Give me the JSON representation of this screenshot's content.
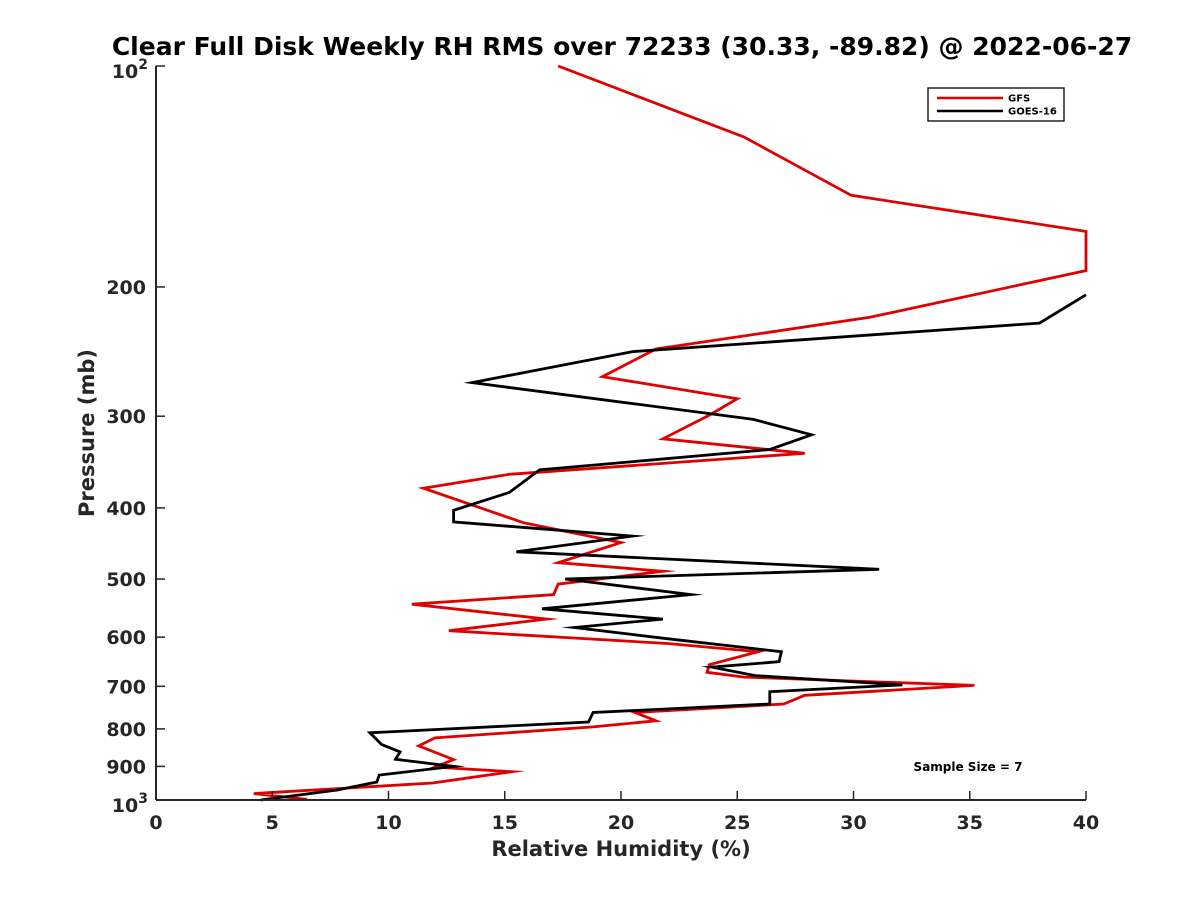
{
  "chart_data": {
    "type": "line",
    "title": "Clear Full Disk Weekly RH RMS over 72233 (30.33, -89.82) @ 2022-06-27",
    "xlabel": "Relative Humidity (%)",
    "ylabel": "Pressure (mb)",
    "xlim": [
      0,
      40
    ],
    "ylim": [
      100,
      1000
    ],
    "y_scale": "log",
    "y_reversed": true,
    "grid": false,
    "legend_position": "top-right",
    "x_ticks": [
      {
        "value": 0,
        "label": "0"
      },
      {
        "value": 5,
        "label": "5"
      },
      {
        "value": 10,
        "label": "10"
      },
      {
        "value": 15,
        "label": "15"
      },
      {
        "value": 20,
        "label": "20"
      },
      {
        "value": 25,
        "label": "25"
      },
      {
        "value": 30,
        "label": "30"
      },
      {
        "value": 35,
        "label": "35"
      },
      {
        "value": 40,
        "label": "40"
      }
    ],
    "y_ticks": [
      {
        "value": 100,
        "base": "10",
        "exp": "2"
      },
      {
        "value": 200,
        "base": "200",
        "exp": ""
      },
      {
        "value": 300,
        "base": "300",
        "exp": ""
      },
      {
        "value": 400,
        "base": "400",
        "exp": ""
      },
      {
        "value": 500,
        "base": "500",
        "exp": ""
      },
      {
        "value": 600,
        "base": "600",
        "exp": ""
      },
      {
        "value": 700,
        "base": "700",
        "exp": ""
      },
      {
        "value": 800,
        "base": "800",
        "exp": ""
      },
      {
        "value": 900,
        "base": "900",
        "exp": ""
      },
      {
        "value": 1000,
        "base": "10",
        "exp": "3"
      }
    ],
    "series": [
      {
        "name": "GFS",
        "color": "#e00000",
        "points": [
          [
            17.3,
            100
          ],
          [
            25.3,
            125
          ],
          [
            29.9,
            150
          ],
          [
            40.0,
            168
          ],
          [
            40.0,
            190
          ],
          [
            30.7,
            220
          ],
          [
            21.5,
            243
          ],
          [
            19.2,
            265
          ],
          [
            25.0,
            284
          ],
          [
            23.8,
            299
          ],
          [
            21.8,
            322
          ],
          [
            27.9,
            337
          ],
          [
            15.2,
            360
          ],
          [
            11.5,
            376
          ],
          [
            15.8,
            419
          ],
          [
            20.0,
            446
          ],
          [
            17.3,
            475
          ],
          [
            21.8,
            488
          ],
          [
            17.3,
            508
          ],
          [
            17.1,
            525
          ],
          [
            11.0,
            541
          ],
          [
            16.8,
            567
          ],
          [
            12.6,
            588
          ],
          [
            22.0,
            612
          ],
          [
            25.9,
            628
          ],
          [
            23.8,
            654
          ],
          [
            23.7,
            670
          ],
          [
            25.3,
            680
          ],
          [
            35.2,
            698
          ],
          [
            27.9,
            720
          ],
          [
            27.0,
            740
          ],
          [
            20.6,
            760
          ],
          [
            21.5,
            780
          ],
          [
            18.8,
            795
          ],
          [
            12.0,
            823
          ],
          [
            11.3,
            844
          ],
          [
            12.8,
            881
          ],
          [
            12.0,
            902
          ],
          [
            15.3,
            915
          ],
          [
            11.9,
            948
          ],
          [
            4.2,
            980
          ],
          [
            6.5,
            998
          ]
        ]
      },
      {
        "name": "GOES-16",
        "color": "#000000",
        "points": [
          [
            40.0,
            205
          ],
          [
            38.0,
            224
          ],
          [
            20.5,
            245
          ],
          [
            13.6,
            270
          ],
          [
            25.7,
            303
          ],
          [
            28.2,
            318
          ],
          [
            26.4,
            333
          ],
          [
            16.5,
            355
          ],
          [
            15.2,
            381
          ],
          [
            12.8,
            403
          ],
          [
            12.8,
            418
          ],
          [
            20.5,
            437
          ],
          [
            15.5,
            459
          ],
          [
            31.1,
            485
          ],
          [
            17.6,
            500
          ],
          [
            23.0,
            525
          ],
          [
            16.6,
            549
          ],
          [
            21.8,
            567
          ],
          [
            18.0,
            582
          ],
          [
            21.8,
            602
          ],
          [
            26.9,
            628
          ],
          [
            26.8,
            648
          ],
          [
            23.9,
            659
          ],
          [
            25.8,
            677
          ],
          [
            32.1,
            697
          ],
          [
            26.4,
            712
          ],
          [
            26.4,
            740
          ],
          [
            18.8,
            760
          ],
          [
            18.6,
            783
          ],
          [
            9.2,
            810
          ],
          [
            9.7,
            840
          ],
          [
            10.5,
            860
          ],
          [
            10.3,
            880
          ],
          [
            12.8,
            900
          ],
          [
            9.6,
            925
          ],
          [
            9.5,
            945
          ],
          [
            7.8,
            969
          ],
          [
            4.5,
            1000
          ]
        ]
      }
    ],
    "annotations": [
      {
        "text": "Sample Size = 7"
      }
    ]
  }
}
